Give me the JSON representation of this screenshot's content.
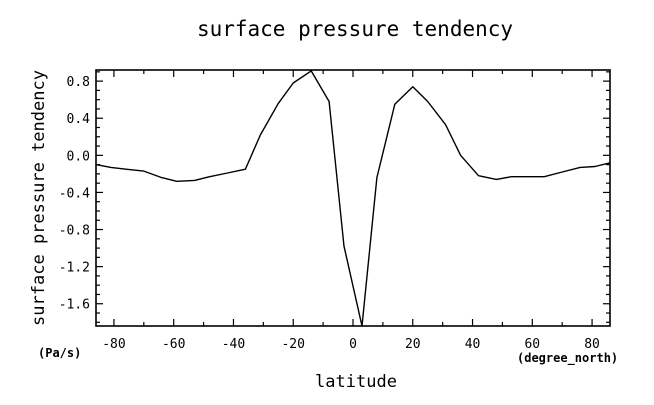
{
  "chart_data": {
    "type": "line",
    "title": "surface pressure tendency",
    "xlabel": "latitude",
    "ylabel": "surface pressure tendency",
    "x_unit": "(degree_north)",
    "y_unit": "(Pa/s)",
    "xlim": [
      -86,
      86
    ],
    "ylim": [
      -1.84,
      0.92
    ],
    "x_ticks": [
      -80,
      -60,
      -40,
      -20,
      0,
      20,
      40,
      60,
      80
    ],
    "y_ticks": [
      0.8,
      0.4,
      0.0,
      -0.4,
      -0.8,
      -1.2,
      -1.6
    ],
    "x_tick_labels": [
      "-80",
      "-60",
      "-40",
      "-20",
      "0",
      "20",
      "40",
      "60",
      "80"
    ],
    "y_tick_labels": [
      "0.8",
      "0.4",
      "0.0",
      "-0.4",
      "-0.8",
      "-1.2",
      "-1.6"
    ],
    "grid": false,
    "series": [
      {
        "x": [
          -86,
          -81,
          -76,
          -70,
          -64,
          -59,
          -53,
          -48,
          -42,
          -36,
          -31,
          -25,
          -20,
          -14,
          -8,
          -3,
          3,
          8,
          14,
          20,
          25,
          31,
          36,
          42,
          48,
          53,
          59,
          64,
          70,
          76,
          81,
          86
        ],
        "y": [
          -0.1,
          -0.13,
          -0.15,
          -0.17,
          -0.24,
          -0.28,
          -0.27,
          -0.23,
          -0.19,
          -0.15,
          0.22,
          0.56,
          0.78,
          0.91,
          0.58,
          -0.98,
          -1.84,
          -0.24,
          0.55,
          0.74,
          0.58,
          0.33,
          0.0,
          -0.22,
          -0.26,
          -0.23,
          -0.23,
          -0.23,
          -0.18,
          -0.13,
          -0.12,
          -0.08
        ]
      }
    ]
  }
}
